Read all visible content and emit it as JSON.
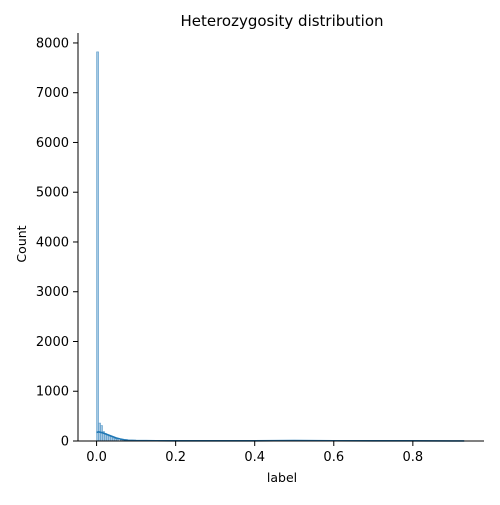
{
  "chart_data": {
    "type": "histogram",
    "title": "Heterozygosity distribution",
    "xlabel": "label",
    "ylabel": "Count",
    "xlim": [
      -0.047,
      0.98
    ],
    "ylim": [
      0,
      8200
    ],
    "xticks": [
      0.0,
      0.2,
      0.4,
      0.6,
      0.8
    ],
    "xtick_labels": [
      "0.0",
      "0.2",
      "0.4",
      "0.6",
      "0.8"
    ],
    "yticks": [
      0,
      1000,
      2000,
      3000,
      4000,
      5000,
      6000,
      7000,
      8000
    ],
    "ytick_labels": [
      "0",
      "1000",
      "2000",
      "3000",
      "4000",
      "5000",
      "6000",
      "7000",
      "8000"
    ],
    "bin_width": 0.005,
    "bars": [
      {
        "x": 0.0,
        "count": 7820
      },
      {
        "x": 0.005,
        "count": 360
      },
      {
        "x": 0.01,
        "count": 310
      },
      {
        "x": 0.015,
        "count": 190
      },
      {
        "x": 0.02,
        "count": 150
      },
      {
        "x": 0.025,
        "count": 120
      },
      {
        "x": 0.03,
        "count": 100
      },
      {
        "x": 0.035,
        "count": 85
      },
      {
        "x": 0.04,
        "count": 60
      },
      {
        "x": 0.045,
        "count": 45
      },
      {
        "x": 0.05,
        "count": 35
      },
      {
        "x": 0.06,
        "count": 25
      },
      {
        "x": 0.07,
        "count": 20
      },
      {
        "x": 0.08,
        "count": 15
      },
      {
        "x": 0.1,
        "count": 12
      },
      {
        "x": 0.15,
        "count": 10
      },
      {
        "x": 0.2,
        "count": 8
      },
      {
        "x": 0.3,
        "count": 8
      },
      {
        "x": 0.4,
        "count": 8
      },
      {
        "x": 0.5,
        "count": 12
      },
      {
        "x": 0.6,
        "count": 8
      },
      {
        "x": 0.7,
        "count": 6
      },
      {
        "x": 0.8,
        "count": 5
      },
      {
        "x": 0.9,
        "count": 4
      },
      {
        "x": 0.93,
        "count": 3
      }
    ],
    "kde": {
      "x": [
        0.0,
        0.005,
        0.01,
        0.015,
        0.02,
        0.03,
        0.04,
        0.05,
        0.06,
        0.07,
        0.08,
        0.1,
        0.15,
        0.2,
        0.3,
        0.4,
        0.5,
        0.6,
        0.7,
        0.8,
        0.9,
        0.93
      ],
      "y": [
        170,
        185,
        175,
        165,
        150,
        120,
        90,
        60,
        40,
        25,
        15,
        8,
        5,
        4,
        4,
        4,
        8,
        5,
        4,
        3,
        2,
        2
      ]
    },
    "colors": {
      "bar_fill": "#a6c8e3",
      "bar_edge": "#5a9bc9",
      "kde_line": "#1f77b4",
      "axis": "#000000"
    },
    "grid": false,
    "legend": "none"
  }
}
